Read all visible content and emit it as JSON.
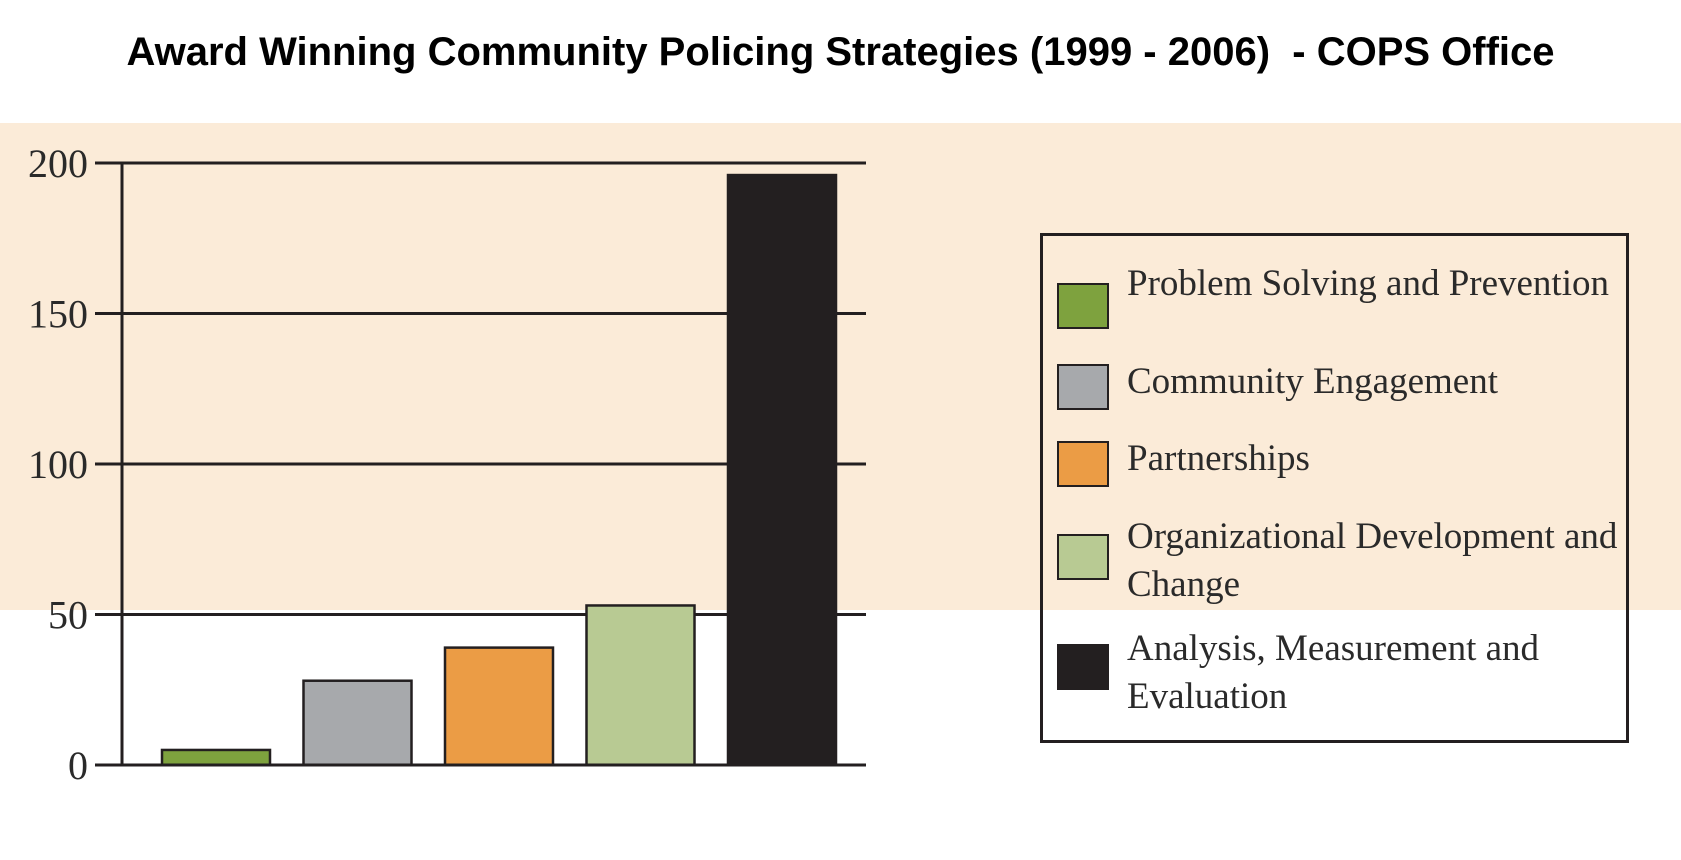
{
  "title": "Award Winning Community Policing Strategies (1999 - 2006)  - COPS Office",
  "chart_data": {
    "type": "bar",
    "title": "Award Winning Community Policing Strategies (1999 - 2006)  - COPS Office",
    "categories": [
      "Problem Solving and Prevention",
      "Community Engagement",
      "Partnerships",
      "Organizational Development and Change",
      "Analysis, Measurement and Evaluation"
    ],
    "values": [
      5,
      28,
      39,
      53,
      196
    ],
    "colors": [
      "#7ea23e",
      "#a7a9ac",
      "#eb9c45",
      "#b8ca93",
      "#231f20"
    ],
    "ylim": [
      0,
      200
    ],
    "yticks": [
      0,
      50,
      100,
      150,
      200
    ],
    "grid": true,
    "legend": "right"
  },
  "legend": {
    "items": [
      {
        "label": "Problem Solving and Prevention",
        "color": "#7ea23e"
      },
      {
        "label": "Community Engagement",
        "color": "#a7a9ac"
      },
      {
        "label": "Partnerships",
        "color": "#eb9c45"
      },
      {
        "label": "Organizational Development and Change",
        "color": "#b8ca93"
      },
      {
        "label": "Analysis, Measurement and Evaluation",
        "color": "#231f20"
      }
    ]
  }
}
